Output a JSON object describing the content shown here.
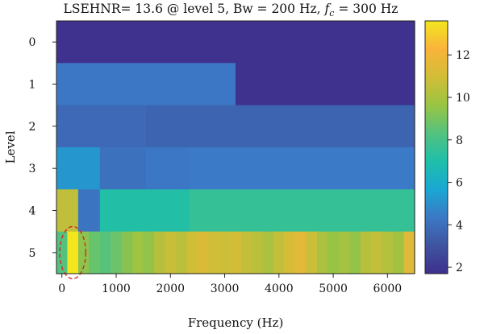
{
  "chart_data": {
    "type": "heatmap",
    "title": "LSEHNR= 13.6 @ level 5, Bw = 200 Hz, f_c = 300 Hz",
    "title_parts": {
      "prefix": "LSEHNR= 13.6 @ level 5, Bw = 200 Hz, ",
      "var": "f",
      "sub": "c",
      "suffix": " = 300 Hz"
    },
    "xlabel": "Frequency (Hz)",
    "ylabel": "Level",
    "xlim": [
      -100,
      6500
    ],
    "x_ticks": [
      0,
      1000,
      2000,
      3000,
      4000,
      5000,
      6000
    ],
    "x_tick_labels": [
      "0",
      "1000",
      "2000",
      "3000",
      "4000",
      "5000",
      "6000"
    ],
    "levels": [
      0,
      1,
      2,
      3,
      4,
      5
    ],
    "level_labels": [
      "0",
      "1",
      "2",
      "3",
      "4",
      "5"
    ],
    "colorbar": {
      "range": [
        1.7,
        13.6
      ],
      "ticks": [
        2,
        4,
        6,
        8,
        10,
        12
      ],
      "tick_labels": [
        "2",
        "4",
        "6",
        "8",
        "10",
        "12"
      ],
      "colormap": "viridis-like",
      "colors": [
        "#3e2f8d",
        "#3f54a0",
        "#3b78c5",
        "#1aa7d3",
        "#1ebfaa",
        "#53c27f",
        "#9ac443",
        "#d2bd37",
        "#f9b43a",
        "#f3e61f"
      ]
    },
    "rows": [
      {
        "level": 0,
        "cells": [
          {
            "x0": -100,
            "x1": 6500,
            "value": 1.8
          }
        ]
      },
      {
        "level": 1,
        "cells": [
          {
            "x0": -100,
            "x1": 3200,
            "value": 4.3
          },
          {
            "x0": 3200,
            "x1": 6500,
            "value": 1.8
          }
        ]
      },
      {
        "level": 2,
        "cells": [
          {
            "x0": -100,
            "x1": 1550,
            "value": 3.8
          },
          {
            "x0": 1550,
            "x1": 6500,
            "value": 3.6
          }
        ]
      },
      {
        "level": 3,
        "cells": [
          {
            "x0": -100,
            "x1": 700,
            "value": 5.2
          },
          {
            "x0": 700,
            "x1": 1550,
            "value": 4.1
          },
          {
            "x0": 1550,
            "x1": 2350,
            "value": 4.3
          },
          {
            "x0": 2350,
            "x1": 6500,
            "value": 4.4
          }
        ]
      },
      {
        "level": 4,
        "cells": [
          {
            "x0": -100,
            "x1": 300,
            "value": 10.5
          },
          {
            "x0": 300,
            "x1": 700,
            "value": 4.2
          },
          {
            "x0": 700,
            "x1": 2350,
            "value": 7.1
          },
          {
            "x0": 2350,
            "x1": 6500,
            "value": 7.6
          }
        ]
      },
      {
        "level": 5,
        "cells": [
          {
            "x0": -100,
            "x1": 100,
            "value": 8.3
          },
          {
            "x0": 100,
            "x1": 300,
            "value": 13.6
          },
          {
            "x0": 300,
            "x1": 500,
            "value": 9.4
          },
          {
            "x0": 500,
            "x1": 700,
            "value": 8.7
          },
          {
            "x0": 700,
            "x1": 900,
            "value": 8.4
          },
          {
            "x0": 900,
            "x1": 1100,
            "value": 8.8
          },
          {
            "x0": 1100,
            "x1": 1300,
            "value": 9.3
          },
          {
            "x0": 1300,
            "x1": 1500,
            "value": 9.7
          },
          {
            "x0": 1500,
            "x1": 1700,
            "value": 9.5
          },
          {
            "x0": 1700,
            "x1": 1900,
            "value": 10.3
          },
          {
            "x0": 1900,
            "x1": 2100,
            "value": 10.7
          },
          {
            "x0": 2100,
            "x1": 2300,
            "value": 10.4
          },
          {
            "x0": 2300,
            "x1": 2500,
            "value": 10.9
          },
          {
            "x0": 2500,
            "x1": 2700,
            "value": 11.2
          },
          {
            "x0": 2700,
            "x1": 2900,
            "value": 10.9
          },
          {
            "x0": 2900,
            "x1": 3100,
            "value": 10.8
          },
          {
            "x0": 3100,
            "x1": 3300,
            "value": 11.0
          },
          {
            "x0": 3300,
            "x1": 3500,
            "value": 10.6
          },
          {
            "x0": 3500,
            "x1": 3700,
            "value": 10.4
          },
          {
            "x0": 3700,
            "x1": 3900,
            "value": 10.0
          },
          {
            "x0": 3900,
            "x1": 4100,
            "value": 10.6
          },
          {
            "x0": 4100,
            "x1": 4300,
            "value": 11.1
          },
          {
            "x0": 4300,
            "x1": 4500,
            "value": 11.5
          },
          {
            "x0": 4500,
            "x1": 4700,
            "value": 10.8
          },
          {
            "x0": 4700,
            "x1": 4900,
            "value": 10.0
          },
          {
            "x0": 4900,
            "x1": 5100,
            "value": 9.6
          },
          {
            "x0": 5100,
            "x1": 5300,
            "value": 9.9
          },
          {
            "x0": 5300,
            "x1": 5500,
            "value": 9.5
          },
          {
            "x0": 5500,
            "x1": 5700,
            "value": 10.3
          },
          {
            "x0": 5700,
            "x1": 5900,
            "value": 10.6
          },
          {
            "x0": 5900,
            "x1": 6100,
            "value": 10.2
          },
          {
            "x0": 6100,
            "x1": 6300,
            "value": 9.8
          },
          {
            "x0": 6300,
            "x1": 6500,
            "value": 11.4
          }
        ]
      }
    ],
    "annotations": [
      {
        "type": "dashed-ellipse",
        "color": "#d62728",
        "level": 5,
        "center_hz": 200,
        "half_width_hz": 240,
        "half_height_levels": 0.62
      }
    ]
  }
}
